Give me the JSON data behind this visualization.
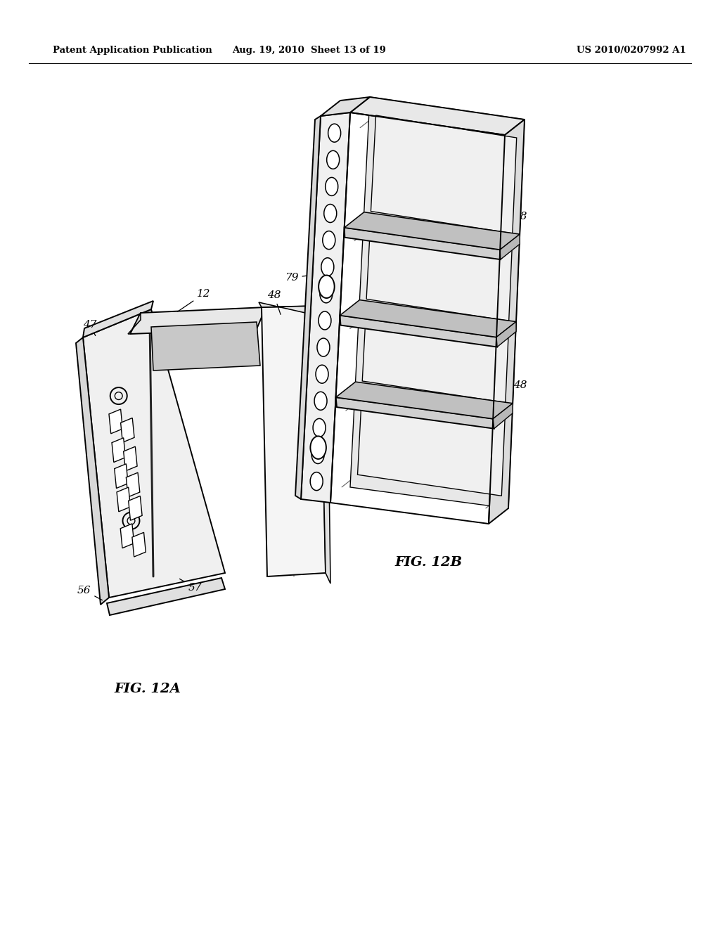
{
  "background_color": "#ffffff",
  "header_left": "Patent Application Publication",
  "header_mid": "Aug. 19, 2010  Sheet 13 of 19",
  "header_right": "US 2010/0207992 A1",
  "fig_label_a": "FIG. 12A",
  "fig_label_b": "FIG. 12B"
}
